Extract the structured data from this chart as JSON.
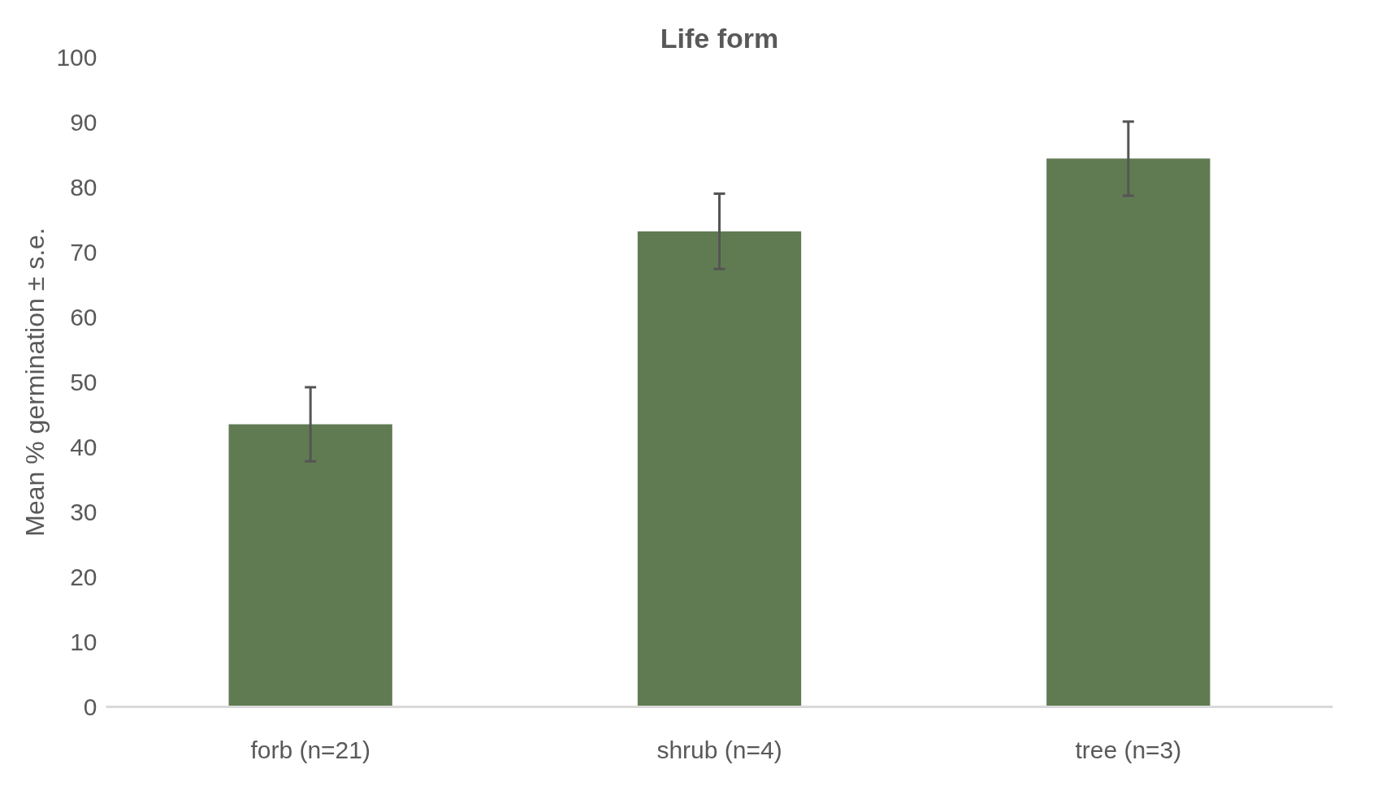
{
  "chart_data": {
    "type": "bar",
    "title": "Life form",
    "ylabel": "Mean % germination ± s.e.",
    "categories": [
      "forb (n=21)",
      "shrub (n=4)",
      "tree (n=3)"
    ],
    "values": [
      43.5,
      73.2,
      84.4
    ],
    "errors": [
      5.7,
      5.8,
      5.7
    ],
    "color": "#607b52",
    "ylim": [
      0,
      100
    ],
    "yticks": [
      0,
      10,
      20,
      30,
      40,
      50,
      60,
      70,
      80,
      90,
      100
    ],
    "grid": false
  }
}
